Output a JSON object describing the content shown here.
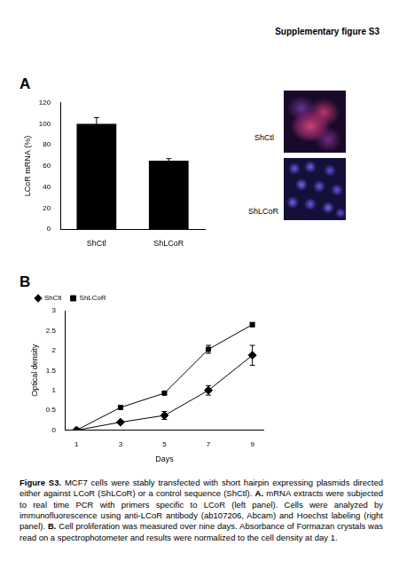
{
  "header": "Supplementary figure S3",
  "panel_labels": [
    "A",
    "B"
  ],
  "image_labels": [
    "ShCtl",
    "ShLCoR"
  ],
  "chart_data": [
    {
      "type": "bar",
      "categories": [
        "ShCtl",
        "ShLCoR"
      ],
      "values": [
        100,
        65
      ],
      "errors": [
        6,
        2
      ],
      "color": "#000000",
      "y_label": "LCoR mRNA (%)",
      "ylim": [
        0,
        120
      ],
      "yticks": [
        0,
        20,
        40,
        60,
        80,
        100,
        120
      ],
      "grid": false
    },
    {
      "type": "line",
      "x": [
        1,
        3,
        5,
        7,
        9
      ],
      "x_label": "Days",
      "y_label": "Optical density",
      "xlim": [
        0.5,
        9.5
      ],
      "xticks": [
        1,
        3,
        5,
        7,
        9
      ],
      "ylim": [
        0,
        3
      ],
      "yticks": [
        0,
        0.5,
        1,
        1.5,
        2,
        2.5,
        3
      ],
      "grid": false,
      "legend": "top-left",
      "series": [
        {
          "name": "ShCtl",
          "color": "#000000",
          "marker": "diamond",
          "values": [
            0,
            0.2,
            0.37,
            1.0,
            1.88
          ],
          "errors": [
            0,
            0.02,
            0.1,
            0.12,
            0.25
          ]
        },
        {
          "name": "ShLCoR",
          "color": "#000000",
          "marker": "square",
          "values": [
            0,
            0.57,
            0.93,
            2.03,
            2.65
          ],
          "errors": [
            0,
            0.03,
            0.03,
            0.1,
            0.05
          ]
        }
      ]
    }
  ],
  "caption": [
    {
      "text": "Figure S3.",
      "bold": true
    },
    {
      "text": " MCF7 cells were stably transfected with short hairpin expressing plasmids directed either against LCoR (ShLCoR) or a control sequence (ShCtl). ",
      "bold": false
    },
    {
      "text": "A.",
      "bold": true
    },
    {
      "text": " mRNA extracts were subjected to real time PCR with primers specific to LCoR (left panel). Cells were analyzed by immunofluorescence using anti-LCoR antibody (ab107206, Abcam) and Hoechst labeling (right panel). ",
      "bold": false
    },
    {
      "text": "B.",
      "bold": true
    },
    {
      "text": " Cell proliferation was measured over nine days. Absorbance of Formazan crystals was read on a spectrophotometer and results were normalized to the cell density at day 1.",
      "bold": false
    }
  ]
}
